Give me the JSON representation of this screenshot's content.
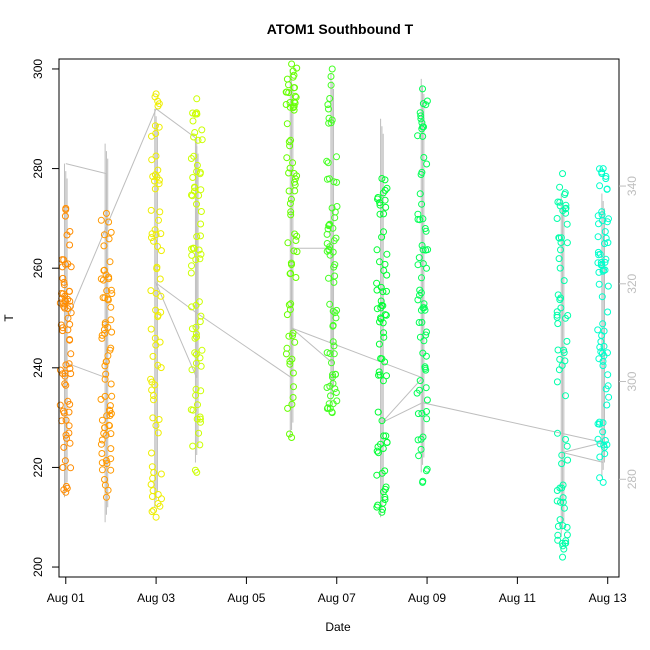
{
  "chart_data": {
    "type": "scatter",
    "title": "ATOM1 Southbound T",
    "xlabel": "Date",
    "ylabel": "T",
    "xlim": [
      -0.15,
      12.25
    ],
    "ylim": [
      198,
      302
    ],
    "x_ticks": [
      {
        "label": "Aug 01",
        "value": 0
      },
      {
        "label": "Aug 03",
        "value": 2
      },
      {
        "label": "Aug 05",
        "value": 4
      },
      {
        "label": "Aug 07",
        "value": 6
      },
      {
        "label": "Aug 09",
        "value": 8
      },
      {
        "label": "Aug 11",
        "value": 10
      },
      {
        "label": "Aug 13",
        "value": 12
      }
    ],
    "y_ticks": [
      200,
      220,
      240,
      260,
      280,
      300
    ],
    "y2lim": [
      260,
      366
    ],
    "y2_ticks": [
      280,
      300,
      320,
      340
    ],
    "track_color": "#bebebe",
    "series": [
      {
        "color": "#ff8c00",
        "x": 0.0,
        "ymin": 215,
        "ymax": 272,
        "trace_min": 214,
        "trace_max": 281
      },
      {
        "color": "#ff9900",
        "x": 0.9,
        "ymin": 214,
        "ymax": 271,
        "trace_min": 209,
        "trace_max": 285
      },
      {
        "color": "#eeee00",
        "x": 2.0,
        "ymin": 210,
        "ymax": 295,
        "trace_min": 212,
        "trace_max": 292
      },
      {
        "color": "#ccff00",
        "x": 2.9,
        "ymin": 219,
        "ymax": 294,
        "trace_min": 221,
        "trace_max": 286
      },
      {
        "color": "#66ff00",
        "x": 5.0,
        "ymin": 226,
        "ymax": 301,
        "trace_min": 226,
        "trace_max": 300
      },
      {
        "color": "#44ff22",
        "x": 5.9,
        "ymin": 231,
        "ymax": 300,
        "trace_min": 233,
        "trace_max": 299
      },
      {
        "color": "#00ff33",
        "x": 7.0,
        "ymin": 211,
        "ymax": 278,
        "trace_min": 210,
        "trace_max": 290
      },
      {
        "color": "#00ff55",
        "x": 7.9,
        "ymin": 217,
        "ymax": 296,
        "trace_min": 219,
        "trace_max": 298
      },
      {
        "color": "#00ffaa",
        "x": 11.0,
        "ymin": 202,
        "ymax": 279,
        "trace_min": 206,
        "trace_max": 275
      },
      {
        "color": "#00ffcc",
        "x": 11.9,
        "ymin": 217,
        "ymax": 280,
        "trace_min": 218,
        "trace_max": 275
      }
    ],
    "track_path": [
      {
        "x": 0.0,
        "y": 281
      },
      {
        "x": 0.9,
        "y": 279
      },
      {
        "x": 0.9,
        "y": 238
      },
      {
        "x": 0.0,
        "y": 241
      },
      {
        "x": 0.0,
        "y": 249
      },
      {
        "x": 2.0,
        "y": 292
      },
      {
        "x": 2.9,
        "y": 286
      },
      {
        "x": 2.9,
        "y": 238
      },
      {
        "x": 2.0,
        "y": 257
      },
      {
        "x": 2.9,
        "y": 251
      },
      {
        "x": 5.0,
        "y": 238
      },
      {
        "x": 5.0,
        "y": 264
      },
      {
        "x": 5.9,
        "y": 264
      },
      {
        "x": 5.9,
        "y": 241
      },
      {
        "x": 5.0,
        "y": 248
      },
      {
        "x": 7.9,
        "y": 238
      },
      {
        "x": 7.0,
        "y": 229
      },
      {
        "x": 7.9,
        "y": 233
      },
      {
        "x": 11.9,
        "y": 225
      },
      {
        "x": 11.0,
        "y": 223
      },
      {
        "x": 11.9,
        "y": 221
      }
    ]
  }
}
